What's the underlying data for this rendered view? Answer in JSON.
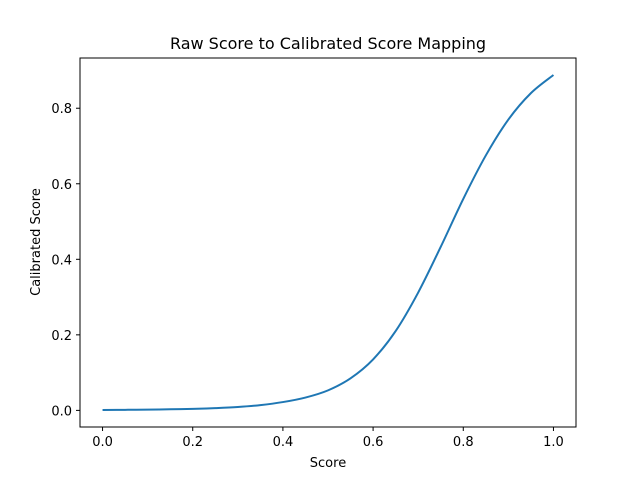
{
  "chart_data": {
    "type": "line",
    "title": "Raw Score to Calibrated Score Mapping",
    "xlabel": "Score",
    "ylabel": "Calibrated Score",
    "xlim": [
      -0.05,
      1.05
    ],
    "ylim": [
      -0.044,
      0.933
    ],
    "x_ticks": [
      {
        "value": 0.0,
        "label": "0.0"
      },
      {
        "value": 0.2,
        "label": "0.2"
      },
      {
        "value": 0.4,
        "label": "0.4"
      },
      {
        "value": 0.6,
        "label": "0.6"
      },
      {
        "value": 0.8,
        "label": "0.8"
      },
      {
        "value": 1.0,
        "label": "1.0"
      }
    ],
    "y_ticks": [
      {
        "value": 0.0,
        "label": "0.0"
      },
      {
        "value": 0.2,
        "label": "0.2"
      },
      {
        "value": 0.4,
        "label": "0.4"
      },
      {
        "value": 0.6,
        "label": "0.6"
      },
      {
        "value": 0.8,
        "label": "0.8"
      }
    ],
    "grid": false,
    "legend": "none",
    "series": [
      {
        "color": "#1f77b4",
        "x": [
          0.0,
          0.05,
          0.1,
          0.15,
          0.2,
          0.25,
          0.3,
          0.35,
          0.4,
          0.45,
          0.5,
          0.55,
          0.6,
          0.65,
          0.7,
          0.75,
          0.8,
          0.85,
          0.9,
          0.95,
          1.0
        ],
        "y": [
          0.001,
          0.0015,
          0.002,
          0.003,
          0.004,
          0.006,
          0.009,
          0.014,
          0.022,
          0.034,
          0.053,
          0.085,
          0.135,
          0.21,
          0.312,
          0.433,
          0.56,
          0.675,
          0.77,
          0.84,
          0.888
        ]
      }
    ]
  }
}
